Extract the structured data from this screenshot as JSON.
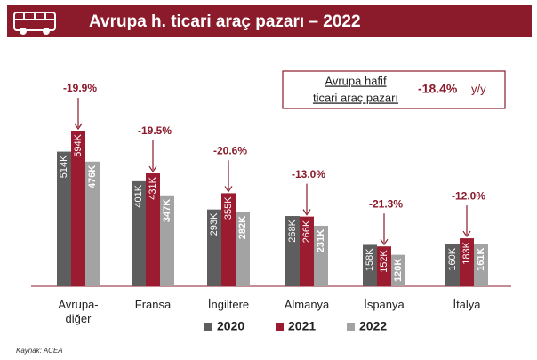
{
  "chart_data": {
    "type": "bar",
    "title": "Avrupa h. ticari araç pazarı – 2022",
    "categories": [
      "Avrupa-diğer",
      "Fransa",
      "İngiltere",
      "Almanya",
      "İspanya",
      "İtalya"
    ],
    "series": [
      {
        "name": "2020",
        "color": "#5e5e5e",
        "values": [
          514,
          401,
          293,
          268,
          158,
          160
        ],
        "value_labels": [
          "514K",
          "401K",
          "293K",
          "268K",
          "158K",
          "160K"
        ]
      },
      {
        "name": "2021",
        "color": "#9b1b30",
        "values": [
          594,
          431,
          355,
          266,
          152,
          183
        ],
        "value_labels": [
          "594K",
          "431K",
          "355K",
          "266K",
          "152K",
          "183K"
        ]
      },
      {
        "name": "2022",
        "color": "#a3a3a3",
        "values": [
          476,
          347,
          282,
          231,
          120,
          161
        ],
        "value_labels": [
          "476K",
          "347K",
          "282K",
          "231K",
          "120K",
          "161K"
        ]
      }
    ],
    "changes": [
      "-19.9%",
      "-19.5%",
      "-20.6%",
      "-13.0%",
      "-21.3%",
      "-12.0%"
    ],
    "box": {
      "label_lines": [
        "Avrupa hafif",
        "ticari araç pazarı"
      ],
      "value": "-18.4%",
      "unit": "y/y"
    },
    "source": "Kaynak: ACEA"
  }
}
